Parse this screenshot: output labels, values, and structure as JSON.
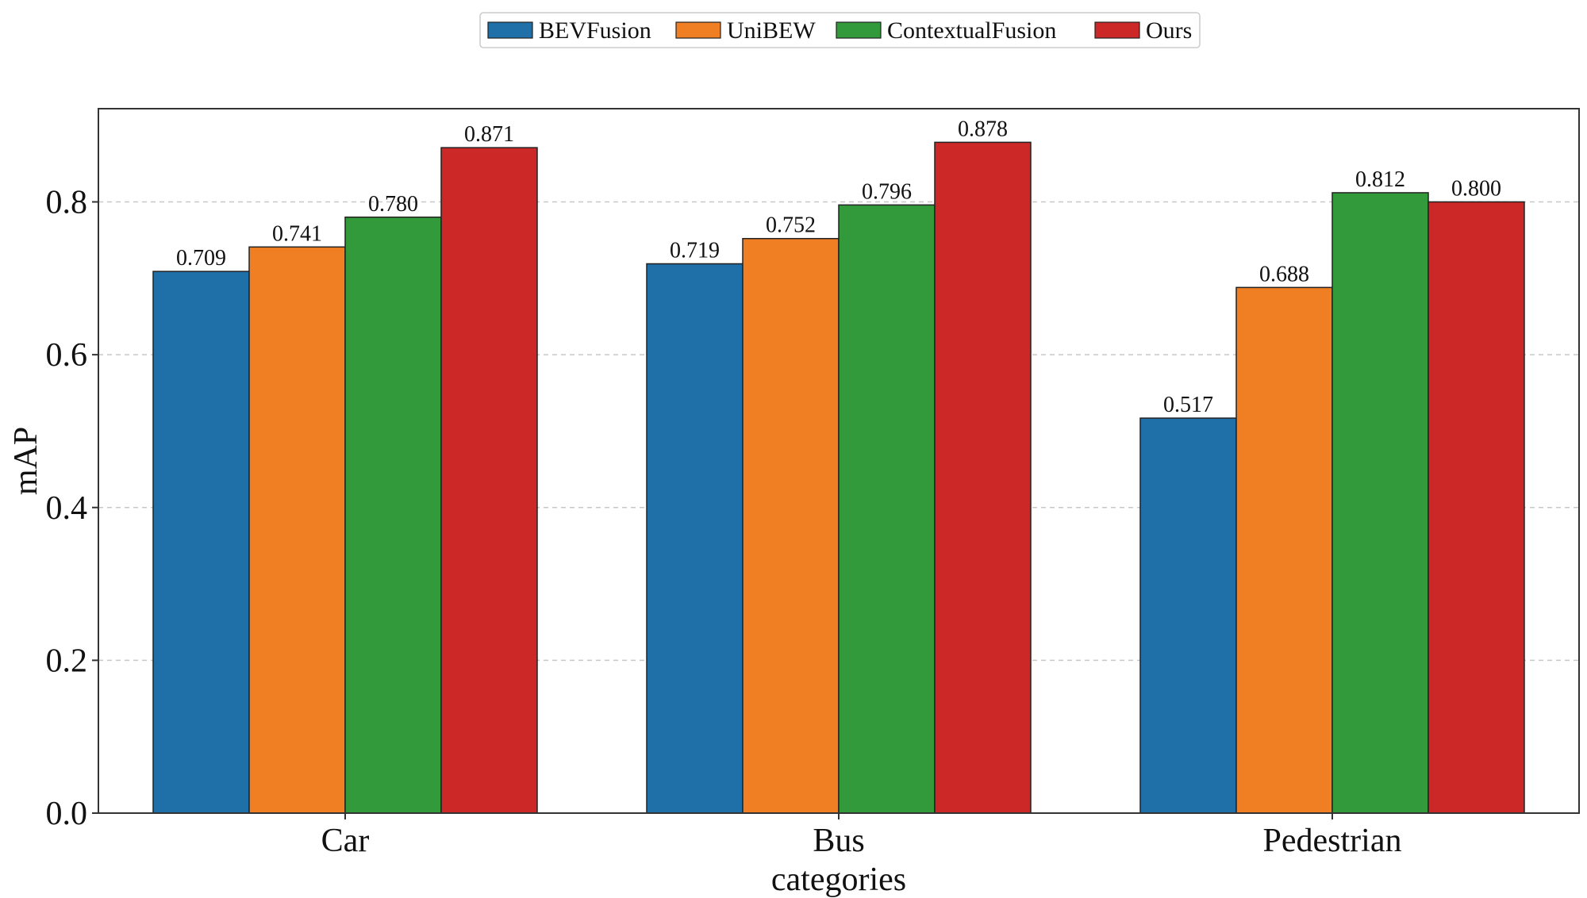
{
  "chart_data": {
    "type": "bar",
    "title": "",
    "xlabel": "categories",
    "ylabel": "mAP",
    "categories": [
      "Car",
      "Bus",
      "Pedestrian"
    ],
    "series": [
      {
        "name": "BEVFusion",
        "color": "#1f6fa8",
        "values": [
          0.709,
          0.719,
          0.517
        ],
        "labels": [
          "0.709",
          "0.719",
          "0.517"
        ]
      },
      {
        "name": "UniBEW",
        "color": "#f07f23",
        "values": [
          0.741,
          0.752,
          0.688
        ],
        "labels": [
          "0.741",
          "0.752",
          "0.688"
        ]
      },
      {
        "name": "ContextualFusion",
        "color": "#339a3c",
        "values": [
          0.78,
          0.796,
          0.812
        ],
        "labels": [
          "0.780",
          "0.796",
          "0.812"
        ]
      },
      {
        "name": "Ours",
        "color": "#cc2828",
        "values": [
          0.871,
          0.878,
          0.8
        ],
        "labels": [
          "0.871",
          "0.878",
          "0.800"
        ]
      }
    ],
    "yticks": [
      0.0,
      0.2,
      0.4,
      0.6,
      0.8
    ],
    "ytick_labels": [
      "0.0",
      "0.2",
      "0.4",
      "0.6",
      "0.8"
    ],
    "ylim": [
      0,
      0.922
    ],
    "grid": "y-dashed",
    "legend_position": "top-center"
  }
}
